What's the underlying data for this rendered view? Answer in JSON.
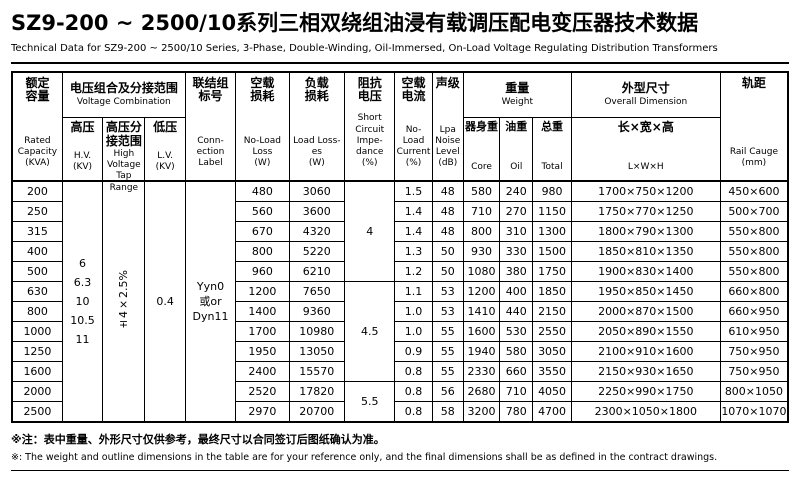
{
  "title": {
    "zh": "SZ9-200 ~ 2500/10系列三相双绕组油浸有载调压配电变压器技术数据",
    "en": "Technical Data for SZ9-200 ~ 2500/10 Series, 3-Phase, Double-Winding, Oil-Immersed, On-Load Voltage Regulating Distribution Transformers"
  },
  "header": {
    "capacity_zh": "额定容量",
    "capacity_en": "Rated Capacity",
    "capacity_unit": "(KVA)",
    "voltage_group_zh": "电压组合及分接范围",
    "voltage_group_en": "Voltage Combination",
    "hv_zh": "高压",
    "hv_en": "H.V.",
    "hv_unit": "(KV)",
    "tap_zh": "高压分接范围",
    "tap_en": "High Voltage Tap Range",
    "lv_zh": "低压",
    "lv_en": "L.V.",
    "lv_unit": "(KV)",
    "connection_zh": "联结组标号",
    "connection_en": "Conn-ection Label",
    "noload_loss_zh": "空载损耗",
    "noload_loss_en": "No-Load Loss",
    "noload_loss_unit": "(W)",
    "load_loss_zh": "负载损耗",
    "load_loss_en": "Load Loss-es",
    "load_loss_unit": "(W)",
    "impedance_zh": "阻抗电压",
    "impedance_en": "Short Circuit Impe-dance",
    "impedance_unit": "(%)",
    "current_zh": "空载电流",
    "current_en": "No-Load Current",
    "current_unit": "(%)",
    "noise_zh": "声级",
    "noise_en": "Lpa Noise Level",
    "noise_unit": "(dB)",
    "weight_group_zh": "重量",
    "weight_group_en": "Weight",
    "core_zh": "器身重",
    "core_en": "Core",
    "oil_zh": "油重",
    "oil_en": "Oil",
    "total_zh": "总重",
    "total_en": "Total",
    "dimension_group_zh": "外型尺寸",
    "dimension_group_en": "Overall Dimension",
    "lwh_zh": "长×宽×高",
    "lwh_en": "L×W×H",
    "rail_zh": "轨距",
    "rail_en": "Rail Cauge",
    "rail_unit": "(mm)"
  },
  "shared": {
    "hv_values": [
      "6",
      "6.3",
      "10",
      "10.5",
      "11"
    ],
    "tap_range": "±4×2.5%",
    "lv_value": "0.4",
    "connection_lines": [
      "Yyn0",
      "或or",
      "Dyn11"
    ]
  },
  "impedance_groups": [
    {
      "value": "4",
      "span": 5
    },
    {
      "value": "4.5",
      "span": 5
    },
    {
      "value": "5.5",
      "span": 2
    }
  ],
  "rows": [
    {
      "capacity": "200",
      "noload_loss": "480",
      "load_loss": "3060",
      "current": "1.5",
      "noise": "48",
      "core": "580",
      "oil": "240",
      "total": "980",
      "dimension": "1700×750×1200",
      "rail": "450×600"
    },
    {
      "capacity": "250",
      "noload_loss": "560",
      "load_loss": "3600",
      "current": "1.4",
      "noise": "48",
      "core": "710",
      "oil": "270",
      "total": "1150",
      "dimension": "1750×770×1250",
      "rail": "500×700"
    },
    {
      "capacity": "315",
      "noload_loss": "670",
      "load_loss": "4320",
      "current": "1.4",
      "noise": "48",
      "core": "800",
      "oil": "310",
      "total": "1300",
      "dimension": "1800×790×1300",
      "rail": "550×800"
    },
    {
      "capacity": "400",
      "noload_loss": "800",
      "load_loss": "5220",
      "current": "1.3",
      "noise": "50",
      "core": "930",
      "oil": "330",
      "total": "1500",
      "dimension": "1850×810×1350",
      "rail": "550×800"
    },
    {
      "capacity": "500",
      "noload_loss": "960",
      "load_loss": "6210",
      "current": "1.2",
      "noise": "50",
      "core": "1080",
      "oil": "380",
      "total": "1750",
      "dimension": "1900×830×1400",
      "rail": "550×800"
    },
    {
      "capacity": "630",
      "noload_loss": "1200",
      "load_loss": "7650",
      "current": "1.1",
      "noise": "53",
      "core": "1200",
      "oil": "400",
      "total": "1850",
      "dimension": "1950×850×1450",
      "rail": "660×800"
    },
    {
      "capacity": "800",
      "noload_loss": "1400",
      "load_loss": "9360",
      "current": "1.0",
      "noise": "53",
      "core": "1410",
      "oil": "440",
      "total": "2150",
      "dimension": "2000×870×1500",
      "rail": "660×950"
    },
    {
      "capacity": "1000",
      "noload_loss": "1700",
      "load_loss": "10980",
      "current": "1.0",
      "noise": "55",
      "core": "1600",
      "oil": "530",
      "total": "2550",
      "dimension": "2050×890×1550",
      "rail": "610×950"
    },
    {
      "capacity": "1250",
      "noload_loss": "1950",
      "load_loss": "13050",
      "current": "0.9",
      "noise": "55",
      "core": "1940",
      "oil": "580",
      "total": "3050",
      "dimension": "2100×910×1600",
      "rail": "750×950"
    },
    {
      "capacity": "1600",
      "noload_loss": "2400",
      "load_loss": "15570",
      "current": "0.8",
      "noise": "55",
      "core": "2330",
      "oil": "660",
      "total": "3550",
      "dimension": "2150×930×1650",
      "rail": "750×950"
    },
    {
      "capacity": "2000",
      "noload_loss": "2520",
      "load_loss": "17820",
      "current": "0.8",
      "noise": "56",
      "core": "2680",
      "oil": "710",
      "total": "4050",
      "dimension": "2250×990×1750",
      "rail": "800×1050"
    },
    {
      "capacity": "2500",
      "noload_loss": "2970",
      "load_loss": "20700",
      "current": "0.8",
      "noise": "58",
      "core": "3200",
      "oil": "780",
      "total": "4700",
      "dimension": "2300×1050×1800",
      "rail": "1070×1070"
    }
  ],
  "footer": {
    "zh": "※注：表中重量、外形尺寸仅供参考，最终尺寸以合同签订后图纸确认为准。",
    "en": "※: The weight and outline dimensions in the table are for your reference only, and the final dimensions shall be as defined in the contract drawings."
  }
}
